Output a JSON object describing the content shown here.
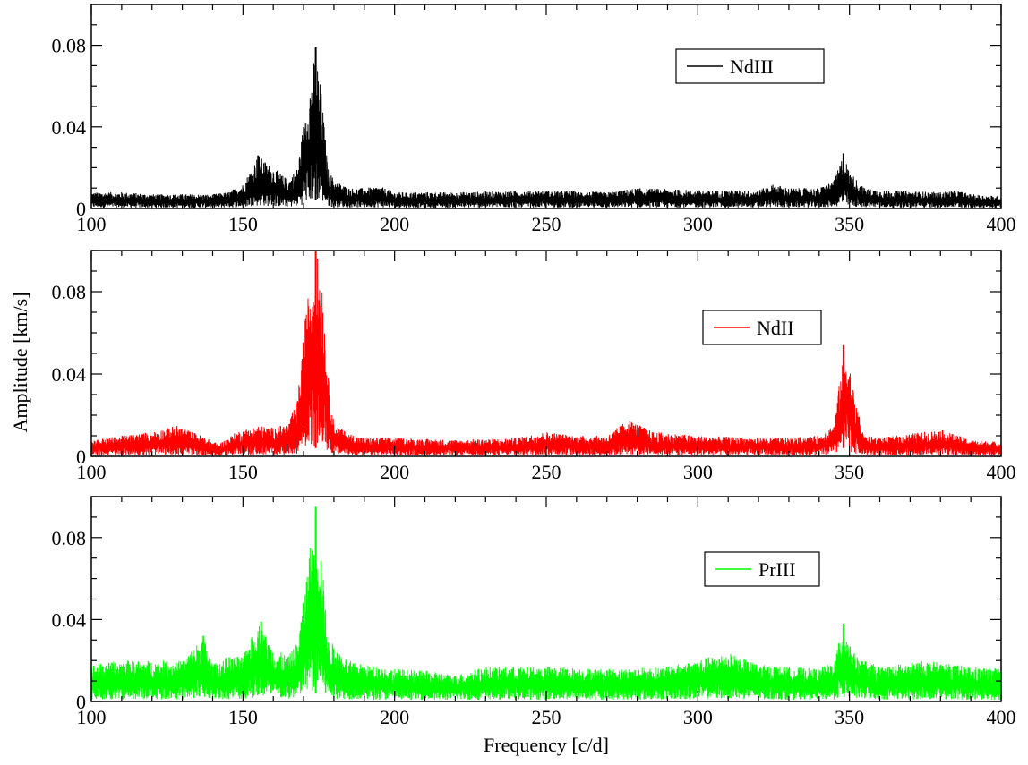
{
  "chart_data": {
    "type": "line",
    "xlabel": "Frequency [c/d]",
    "ylabel": "Amplitude [km/s]",
    "panels": [
      {
        "name": "NdIII",
        "color": "#000000",
        "xlim": [
          100,
          400
        ],
        "ylim": [
          0,
          0.1
        ],
        "xticks": [
          100,
          150,
          200,
          250,
          300,
          350,
          400
        ],
        "xtick_labels": [
          "100",
          "150",
          "200",
          "250",
          "300",
          "350",
          "400"
        ],
        "yticks": [
          0,
          0.04,
          0.08
        ],
        "ytick_labels": [
          "0",
          "0.04",
          "0.08"
        ],
        "legend_position": "upper-right",
        "noise_envelope": {
          "x": [
            100,
            110,
            120,
            130,
            140,
            145,
            150,
            155,
            160,
            165,
            168,
            170,
            172,
            174,
            176,
            178,
            180,
            185,
            190,
            195,
            200,
            220,
            250,
            270,
            280,
            300,
            320,
            325,
            330,
            340,
            345,
            348,
            350,
            355,
            360,
            380,
            385,
            390,
            400
          ],
          "y": [
            0.008,
            0.008,
            0.007,
            0.007,
            0.007,
            0.008,
            0.012,
            0.026,
            0.02,
            0.014,
            0.02,
            0.042,
            0.06,
            0.078,
            0.055,
            0.02,
            0.014,
            0.01,
            0.01,
            0.011,
            0.008,
            0.008,
            0.009,
            0.008,
            0.01,
            0.009,
            0.009,
            0.012,
            0.01,
            0.01,
            0.014,
            0.027,
            0.018,
            0.01,
            0.009,
            0.008,
            0.009,
            0.007,
            0.006
          ]
        },
        "peaks": [
          {
            "x": 155,
            "y": 0.026
          },
          {
            "x": 174,
            "y": 0.079
          },
          {
            "x": 348,
            "y": 0.027
          }
        ]
      },
      {
        "name": "NdII",
        "color": "#ff0000",
        "xlim": [
          100,
          400
        ],
        "ylim": [
          0,
          0.1
        ],
        "xticks": [
          100,
          150,
          200,
          250,
          300,
          350,
          400
        ],
        "xtick_labels": [
          "100",
          "150",
          "200",
          "250",
          "300",
          "350",
          "400"
        ],
        "yticks": [
          0,
          0.04,
          0.08
        ],
        "ytick_labels": [
          "0",
          "0.04",
          "0.08"
        ],
        "legend_position": "center-right",
        "noise_envelope": {
          "x": [
            100,
            110,
            120,
            128,
            135,
            142,
            148,
            155,
            160,
            165,
            168,
            170,
            172,
            174,
            176,
            178,
            180,
            185,
            190,
            200,
            220,
            240,
            250,
            260,
            270,
            277,
            285,
            300,
            320,
            330,
            340,
            345,
            347,
            349,
            352,
            355,
            360,
            380,
            390,
            400
          ],
          "y": [
            0.008,
            0.01,
            0.012,
            0.015,
            0.011,
            0.006,
            0.012,
            0.015,
            0.014,
            0.016,
            0.028,
            0.06,
            0.085,
            0.1,
            0.09,
            0.04,
            0.016,
            0.011,
            0.009,
            0.009,
            0.008,
            0.009,
            0.012,
            0.01,
            0.01,
            0.018,
            0.012,
            0.01,
            0.009,
            0.009,
            0.01,
            0.016,
            0.04,
            0.054,
            0.026,
            0.01,
            0.009,
            0.013,
            0.008,
            0.007
          ]
        },
        "peaks": [
          {
            "x": 174,
            "y": 0.1
          },
          {
            "x": 348,
            "y": 0.054
          }
        ]
      },
      {
        "name": "PrIII",
        "color": "#00ff00",
        "xlim": [
          100,
          400
        ],
        "ylim": [
          0,
          0.1
        ],
        "xticks": [
          100,
          150,
          200,
          250,
          300,
          350,
          400
        ],
        "xtick_labels": [
          "100",
          "150",
          "200",
          "250",
          "300",
          "350",
          "400"
        ],
        "yticks": [
          0,
          0.04,
          0.08
        ],
        "ytick_labels": [
          "0",
          "0.04",
          "0.08"
        ],
        "legend_position": "upper-right",
        "noise_envelope": {
          "x": [
            100,
            110,
            120,
            130,
            137,
            140,
            145,
            150,
            155,
            160,
            165,
            168,
            170,
            172,
            174,
            176,
            178,
            180,
            185,
            190,
            200,
            210,
            220,
            230,
            250,
            270,
            290,
            310,
            320,
            330,
            340,
            345,
            348,
            352,
            360,
            375,
            390,
            400
          ],
          "y": [
            0.018,
            0.02,
            0.02,
            0.02,
            0.032,
            0.018,
            0.022,
            0.022,
            0.039,
            0.026,
            0.022,
            0.03,
            0.05,
            0.075,
            0.095,
            0.07,
            0.03,
            0.028,
            0.02,
            0.018,
            0.016,
            0.015,
            0.013,
            0.017,
            0.017,
            0.016,
            0.017,
            0.024,
            0.018,
            0.017,
            0.016,
            0.02,
            0.038,
            0.022,
            0.017,
            0.02,
            0.017,
            0.016
          ]
        },
        "peaks": [
          {
            "x": 137,
            "y": 0.032
          },
          {
            "x": 156,
            "y": 0.039
          },
          {
            "x": 174,
            "y": 0.095
          },
          {
            "x": 348,
            "y": 0.038
          }
        ]
      }
    ]
  }
}
